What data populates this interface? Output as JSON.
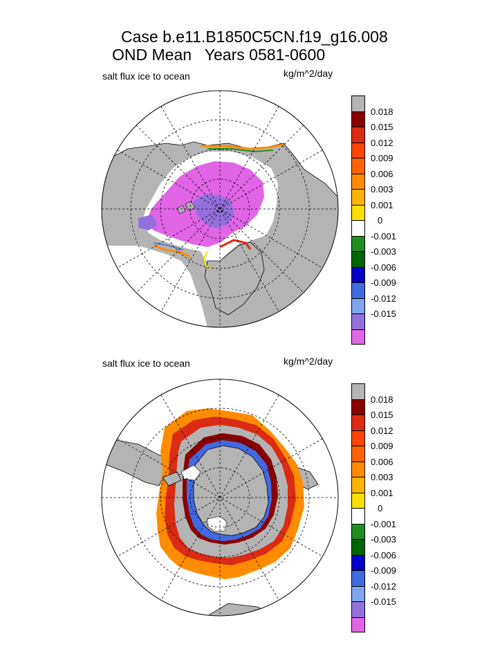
{
  "title": {
    "line1": "Case b.e11.B1850C5CN.f19_g16.008",
    "line2": "OND Mean   Years 0581-0600"
  },
  "panels": [
    {
      "id": "north",
      "hemisphere": "Northern Hemisphere polar projection",
      "variable_label": "salt flux ice to ocean",
      "units": "kg/m^2/day"
    },
    {
      "id": "south",
      "hemisphere": "Southern Hemisphere polar projection",
      "variable_label": "salt flux ice to ocean",
      "units": "kg/m^2/day"
    }
  ],
  "colorbar": {
    "land_color": "#b4b4b4",
    "colors": [
      "#b4b4b4",
      "#8b0000",
      "#dc2b14",
      "#ff4500",
      "#ff6400",
      "#ff8c00",
      "#ffb400",
      "#ffe000",
      "#ffffff",
      "#228b22",
      "#006400",
      "#0000c8",
      "#4169e1",
      "#7fa5f0",
      "#9370db",
      "#e066e6"
    ],
    "labels": [
      "0.018",
      "0.015",
      "0.012",
      "0.009",
      "0.006",
      "0.003",
      "0.001",
      "0",
      "-0.001",
      "-0.003",
      "-0.006",
      "-0.009",
      "-0.012",
      "-0.015"
    ]
  },
  "palette": {
    "land": "#b4b4b4",
    "ocean": "#ffffff",
    "magenta": "#e066e6",
    "purple": "#9370db",
    "blue": "#4169e1",
    "darkred": "#8b0000",
    "red": "#dc2b14",
    "orange": "#ff8c00",
    "yellow": "#ffe000",
    "green": "#228b22"
  }
}
